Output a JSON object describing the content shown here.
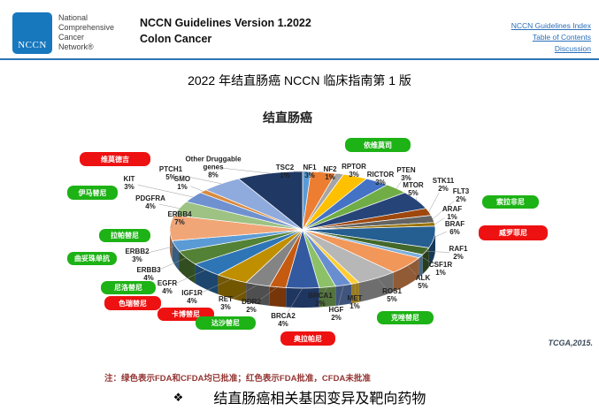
{
  "header": {
    "logo_text": "NCCN",
    "org_lines": [
      "National",
      "Comprehensive",
      "Cancer",
      "Network®"
    ],
    "title_line1": "NCCN Guidelines Version 1.2022",
    "title_line2": "Colon Cancer",
    "links": [
      "NCCN Guidelines Index",
      "Table of Contents",
      "Discussion"
    ]
  },
  "page_title": "2022 年结直肠癌 NCCN 临床指南第 1 版",
  "chart_data": {
    "type": "pie",
    "title": "结直肠癌",
    "source": "TCGA,2015.",
    "legend_note": "注：绿色表示FDA和CFDA均已批准；红色表示FDA批准，CFDA未批准",
    "genes": [
      {
        "name": "TSC2",
        "pct": 1,
        "color": "#5B9BD5"
      },
      {
        "name": "NF1",
        "pct": 3,
        "color": "#ED7D31"
      },
      {
        "name": "NF2",
        "pct": 1,
        "color": "#A5A5A5"
      },
      {
        "name": "RPTOR",
        "pct": 3,
        "color": "#FFC000"
      },
      {
        "name": "RICTOR",
        "pct": 3,
        "color": "#4472C4"
      },
      {
        "name": "PTEN",
        "pct": 3,
        "color": "#70AD47"
      },
      {
        "name": "MTOR",
        "pct": 5,
        "color": "#264478"
      },
      {
        "name": "STK11",
        "pct": 2,
        "color": "#9E480E"
      },
      {
        "name": "FLT3",
        "pct": 2,
        "color": "#636363"
      },
      {
        "name": "ARAF",
        "pct": 1,
        "color": "#997300"
      },
      {
        "name": "BRAF",
        "pct": 6,
        "color": "#255E91"
      },
      {
        "name": "RAF1",
        "pct": 2,
        "color": "#43682B"
      },
      {
        "name": "CSF1R",
        "pct": 1,
        "color": "#7CAFDD"
      },
      {
        "name": "ALK",
        "pct": 5,
        "color": "#F1975A"
      },
      {
        "name": "ROS1",
        "pct": 5,
        "color": "#B7B7B7"
      },
      {
        "name": "MET",
        "pct": 1,
        "color": "#FFCD33"
      },
      {
        "name": "HGF",
        "pct": 2,
        "color": "#698ED0"
      },
      {
        "name": "BRCA1",
        "pct": 2,
        "color": "#8CC168"
      },
      {
        "name": "BRCA2",
        "pct": 4,
        "color": "#335AA1"
      },
      {
        "name": "DDR2",
        "pct": 2,
        "color": "#C55A11"
      },
      {
        "name": "RET",
        "pct": 3,
        "color": "#848484"
      },
      {
        "name": "IGF1R",
        "pct": 4,
        "color": "#BF8F00"
      },
      {
        "name": "EGFR",
        "pct": 4,
        "color": "#2E75B6"
      },
      {
        "name": "ERBB3",
        "pct": 4,
        "color": "#538135"
      },
      {
        "name": "ERBB2",
        "pct": 3,
        "color": "#5B9BD5"
      },
      {
        "name": "ERBB4",
        "pct": 7,
        "color": "#F1A678"
      },
      {
        "name": "PDGFRA",
        "pct": 4,
        "color": "#9DC284"
      },
      {
        "name": "KIT",
        "pct": 3,
        "color": "#6F91D0"
      },
      {
        "name": "SMO",
        "pct": 1,
        "color": "#D98C3F"
      },
      {
        "name": "PTCH1",
        "pct": 5,
        "color": "#8FAADC"
      },
      {
        "name": "Other Druggable genes",
        "pct": 8,
        "color": "#1F3864"
      }
    ],
    "drugs": [
      {
        "label": "依维莫司",
        "approval": "FDA+CFDA"
      },
      {
        "label": "维莫德吉",
        "approval": "FDA"
      },
      {
        "label": "伊马替尼",
        "approval": "FDA+CFDA"
      },
      {
        "label": "拉帕替尼",
        "approval": "FDA+CFDA"
      },
      {
        "label": "曲妥珠单抗",
        "approval": "FDA+CFDA"
      },
      {
        "label": "尼洛替尼",
        "approval": "FDA+CFDA"
      },
      {
        "label": "色瑞替尼",
        "approval": "FDA"
      },
      {
        "label": "卡博替尼",
        "approval": "FDA"
      },
      {
        "label": "达沙替尼",
        "approval": "FDA+CFDA"
      },
      {
        "label": "奥拉帕尼",
        "approval": "FDA"
      },
      {
        "label": "克唑替尼",
        "approval": "FDA+CFDA"
      },
      {
        "label": "索拉非尼",
        "approval": "FDA+CFDA"
      },
      {
        "label": "威罗菲尼",
        "approval": "FDA"
      }
    ]
  },
  "footer": {
    "bullet": "❖",
    "caption": "结直肠癌相关基因变异及靶向药物"
  },
  "colors": {
    "approved_green": "#1db215",
    "fda_only_red": "#ee1111",
    "link_blue": "#2a6ebb",
    "rule_blue": "#2e75b6",
    "logo_blue": "#1878be"
  }
}
